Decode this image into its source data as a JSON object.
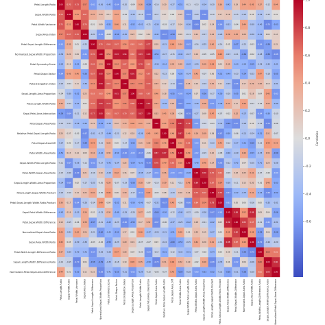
{
  "chart_data": {
    "type": "heatmap",
    "title": "",
    "xlabel": "",
    "ylabel": "",
    "n": 28,
    "row_labels": [
      "Petal.Length.Ratio",
      "Sepal.Width.Ratio",
      "Petal.Width.Variance",
      "Sepal.Area.Index",
      "Petal.Sepal.Length.Difference",
      "Normalized.Sepal.Width.Proportion",
      "Petal.Symmetry.Score",
      "Petal.Shape.Factor",
      "Petal.Elongation.Index",
      "Sepal.Length.Area.Proportion",
      "Petal.Length.Width.Ratio",
      "Sepal.Petal.Area.Interaction",
      "Petal.Sepal.Area.Ratio",
      "Relative.Petal.Sepal.Length.Ratio",
      "Petal.Sepal.Area.Diff",
      "Petal.Width.Area.Ratio",
      "Sepal.Width.Petal.Length.Ratio",
      "Petal.Width.Sepal.Area.Ratio",
      "Sepal.Length.Width.Area.Proportion",
      "Petal.Length.Sepal.Width.Product",
      "Petal.Sepal.Length.Width.Ratio.Product",
      "Sepal.Petal.Width.Difference",
      "Petal.Sepal.Width.Difference",
      "Normalized.Sepal.Area.Ratio",
      "Sepal.Area.Width.Ratio",
      "Petal.Width.Length.Difference.Ratio",
      "Sepal.Length.Width.Difference.Ratio",
      "Normalized.Petal.Sepal.Area.Difference"
    ],
    "vmin": -1,
    "vmax": 1,
    "colorbar_ticks": [
      "1.0",
      "0.8",
      "0.6",
      "0.4",
      "0.2",
      "0.0",
      "-0.2",
      "-0.4",
      "-0.6"
    ],
    "colorbar_title": "Correlation",
    "colormap": "coolwarm",
    "grid": true
  }
}
